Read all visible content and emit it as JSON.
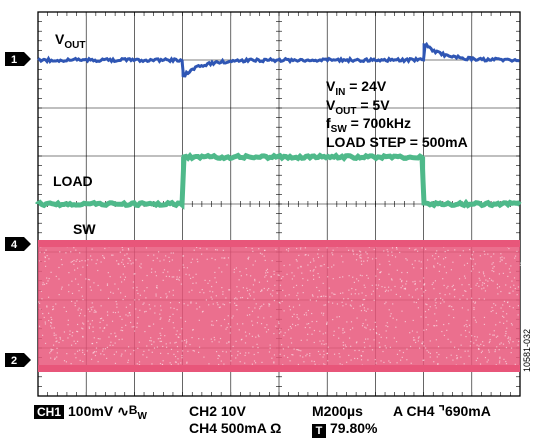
{
  "chart_data": {
    "type": "line",
    "title": "",
    "grid": true,
    "x_divisions": 10,
    "y_divisions": 8,
    "time_per_div": "200µs",
    "series": [
      {
        "name": "VOUT",
        "channel": 1,
        "color": "#2f56b4",
        "load_step_up_at_div": 3.0,
        "load_step_down_at_div": 8.0,
        "transient_peak_div": 0.35
      },
      {
        "name": "LOAD",
        "channel": 2,
        "color": "#4fb98a",
        "low_level_div": 4.2,
        "high_level_div": 3.0,
        "step_up_at_div": 3.0,
        "step_down_at_div": 8.0
      },
      {
        "name": "SW",
        "channel": 4,
        "color": "#e8567a",
        "switching_band_div": [
          1.0,
          4.0
        ]
      }
    ],
    "annotations": {
      "vout_label": {
        "base": "V",
        "sub": "OUT"
      },
      "load_label": "LOAD",
      "sw_label": "SW",
      "conditions": [
        {
          "base": "V",
          "sub": "IN",
          "rest": " = 24V"
        },
        {
          "base": "V",
          "sub": "OUT",
          "rest": " = 5V"
        },
        {
          "base": "f",
          "sub": "SW",
          "rest": " = 700kHz"
        },
        {
          "base": "LOAD STEP = 500mA",
          "sub": "",
          "rest": ""
        }
      ]
    },
    "markers": [
      {
        "label": "1",
        "color": "#000000"
      },
      {
        "label": "4",
        "color": "#000000"
      },
      {
        "label": "2",
        "color": "#000000"
      }
    ],
    "bottom_readout": {
      "row1": {
        "ch1_box": "CH1",
        "ch1": "100mV",
        "bw_symbol": "∿",
        "bw": "B",
        "bw_sub": "W",
        "ch2": "CH2  10V",
        "time": "M200µs",
        "trig": "A  CH4",
        "trig_sym": "⌝",
        "trig_level": "690mA"
      },
      "row2": {
        "ch4": "CH4  500mA Ω",
        "t_box": "T",
        "t_pos": "79.80%"
      }
    },
    "figure_id": "10581-032"
  },
  "colors": {
    "grid": "#000000",
    "vout": "#2f56b4",
    "load": "#4fb98a",
    "sw": "#e8567a"
  }
}
